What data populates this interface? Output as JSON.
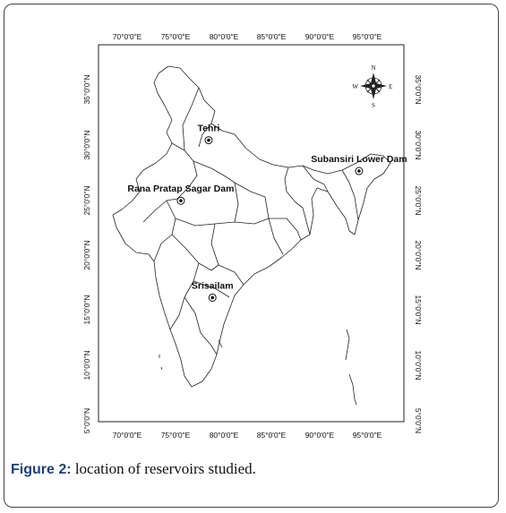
{
  "axes": {
    "x_ticks": [
      "70°0'0\"E",
      "75°0'0\"E",
      "80°0'0\"E",
      "85°0'0\"E",
      "90°0'0\"E",
      "95°0'0\"E"
    ],
    "y_ticks": [
      "35°0'0\"N",
      "30°0'0\"N",
      "25°0'0\"N",
      "20°0'0\"N",
      "15°0'0\"N",
      "10°0'0\"N",
      "5°0'0\"N"
    ]
  },
  "compass": {
    "n": "N",
    "s": "S",
    "e": "E",
    "w": "W"
  },
  "reservoirs": [
    {
      "name": "Tehri",
      "lon": 78.5,
      "lat": 30.4
    },
    {
      "name": "Rana Pratap Sagar Dam",
      "lon": 75.6,
      "lat": 24.9
    },
    {
      "name": "Subansiri Lower Dam",
      "lon": 94.2,
      "lat": 27.6
    },
    {
      "name": "Srisailam",
      "lon": 78.9,
      "lat": 16.1
    }
  ],
  "caption": {
    "label": "Figure 2:",
    "text": " location of reservoirs studied."
  }
}
